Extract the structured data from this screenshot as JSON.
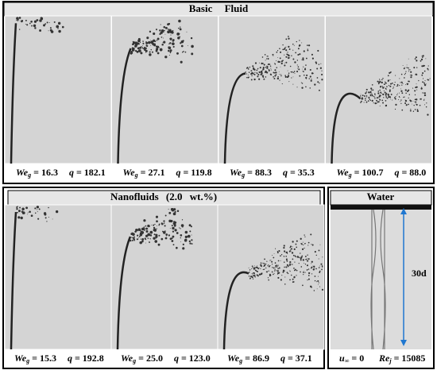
{
  "top": {
    "title": "Basic Fluid",
    "panels": [
      {
        "we": "16.3",
        "q": "182.1"
      },
      {
        "we": "27.1",
        "q": "119.8"
      },
      {
        "we": "88.3",
        "q": "35.3"
      },
      {
        "we": "100.7",
        "q": "88.0"
      }
    ]
  },
  "bottom": {
    "title": "Nanofluids (2.0 wt.%)",
    "panels": [
      {
        "we": "15.3",
        "q": "192.8"
      },
      {
        "we": "25.0",
        "q": "123.0"
      },
      {
        "we": "86.9",
        "q": "37.1"
      }
    ]
  },
  "water": {
    "title": "Water",
    "length": "30d",
    "u_label": "u",
    "u_sub": "∞",
    "u_value": "0",
    "re_label": "Re",
    "re_sub": "j",
    "re_value": "15085"
  },
  "labels": {
    "we": "We",
    "we_sub": "g",
    "q": "q",
    "equals": "="
  }
}
